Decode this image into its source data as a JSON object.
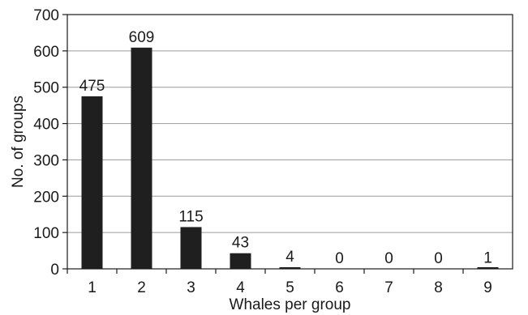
{
  "chart_data": {
    "type": "bar",
    "title": "",
    "xlabel": "Whales per group",
    "ylabel": "No. of groups",
    "categories": [
      "1",
      "2",
      "3",
      "4",
      "5",
      "6",
      "7",
      "8",
      "9"
    ],
    "values": [
      475,
      609,
      115,
      43,
      4,
      0,
      0,
      0,
      1
    ],
    "data_labels": [
      "475",
      "609",
      "115",
      "43",
      "4",
      "0",
      "0",
      "0",
      "1"
    ],
    "ylim": [
      0,
      700
    ],
    "yticks": [
      "0",
      "100",
      "200",
      "300",
      "400",
      "500",
      "600",
      "700"
    ],
    "grid": true,
    "legend": "none",
    "colors": {
      "bar": "#1f1f1f",
      "grid": "#9a9a9a",
      "frame": "#1a1a1a",
      "text": "#1a1a1a"
    }
  }
}
